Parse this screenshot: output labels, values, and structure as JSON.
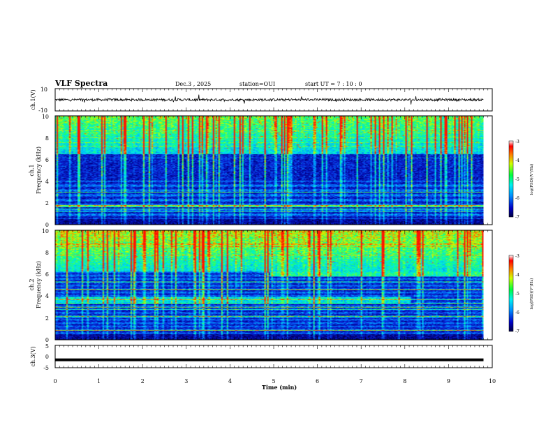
{
  "header": {
    "title": "VLF Spectra",
    "date": "Dec.3 , 2025",
    "station": "station=OUI",
    "start": "start UT = 7 : 10 : 0"
  },
  "chart_data": [
    {
      "type": "line",
      "name": "ch1-waveform",
      "ylabel": "ch.1(V)",
      "ylim": [
        -10,
        10
      ],
      "yticks": [
        "10",
        "-10"
      ],
      "level": 0
    },
    {
      "type": "heatmap",
      "name": "ch1-spectrogram",
      "ylabel_line1": "ch.1",
      "ylabel_line2": "Frequency (kHz)",
      "ylim": [
        0,
        10
      ],
      "yticks": [
        "0",
        "2",
        "4",
        "6",
        "8",
        "10"
      ],
      "colorbar": {
        "label": "log(PSD)(V²/Hz)",
        "range": [
          -7,
          -3
        ],
        "ticks": [
          "-3",
          "-4",
          "-5",
          "-6",
          "-7"
        ]
      }
    },
    {
      "type": "heatmap",
      "name": "ch2-spectrogram",
      "ylabel_line1": "ch.2",
      "ylabel_line2": "Frequency (kHz)",
      "ylim": [
        0,
        10
      ],
      "yticks": [
        "0",
        "2",
        "4",
        "6",
        "8",
        "10"
      ],
      "colorbar": {
        "label": "log(PSD)(V²/Hz)",
        "range": [
          -7,
          -3
        ],
        "ticks": [
          "-3",
          "-4",
          "-5",
          "-6",
          "-7"
        ]
      }
    },
    {
      "type": "line",
      "name": "ch3-waveform",
      "ylabel": "ch.3(V)",
      "ylim": [
        -5,
        5
      ],
      "yticks": [
        "5",
        "0",
        "-5"
      ],
      "level": -1.5
    }
  ],
  "xaxis": {
    "label": "Time (min)",
    "xlim": [
      0,
      10
    ],
    "ticks": [
      "0",
      "1",
      "2",
      "3",
      "4",
      "5",
      "6",
      "7",
      "8",
      "9",
      "10"
    ],
    "data_end": 9.8
  },
  "colors": {
    "noise_floor": "#000a55",
    "low": "#0a2ad8",
    "mid": "#12c8ff",
    "high": "#14ff6e",
    "peak": "#ff2a00"
  }
}
